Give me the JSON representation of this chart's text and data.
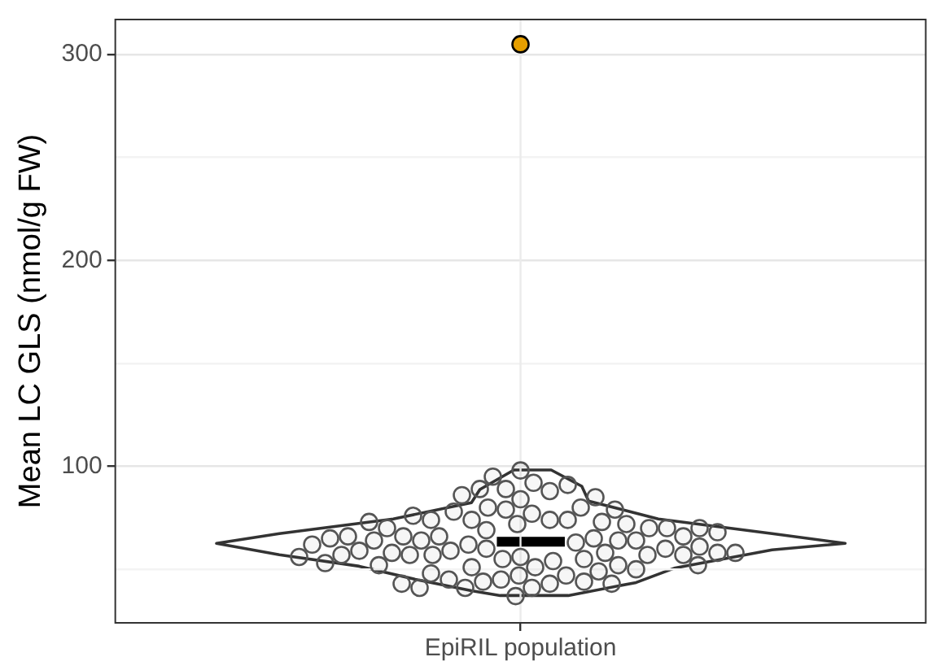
{
  "chart_data": {
    "type": "scatter",
    "categories": [
      "EpiRIL population"
    ],
    "ylabel": "Mean LC GLS (nmol/g FW)",
    "ylim": [
      24,
      317
    ],
    "yticks": [
      {
        "value": 50,
        "label": null
      },
      100,
      {
        "value": 150,
        "label": null
      },
      200,
      {
        "value": 250,
        "label": null
      },
      300
    ],
    "grid": "y",
    "ref_lines": [
      {
        "axis": "x",
        "value": "EpiRIL population",
        "color": "#ebebeb"
      }
    ],
    "legend": false,
    "marker": "circle",
    "series": [
      {
        "color": "#555555",
        "x": [
          "EpiRIL population",
          "EpiRIL population",
          "EpiRIL population",
          "EpiRIL population",
          "EpiRIL population",
          "EpiRIL population",
          "EpiRIL population",
          "EpiRIL population",
          "EpiRIL population",
          "EpiRIL population",
          "EpiRIL population",
          "EpiRIL population",
          "EpiRIL population",
          "EpiRIL population",
          "EpiRIL population",
          "EpiRIL population",
          "EpiRIL population",
          "EpiRIL population",
          "EpiRIL population",
          "EpiRIL population",
          "EpiRIL population",
          "EpiRIL population",
          "EpiRIL population",
          "EpiRIL population",
          "EpiRIL population",
          "EpiRIL population",
          "EpiRIL population",
          "EpiRIL population",
          "EpiRIL population",
          "EpiRIL population",
          "EpiRIL population",
          "EpiRIL population",
          "EpiRIL population",
          "EpiRIL population",
          "EpiRIL population",
          "EpiRIL population",
          "EpiRIL population",
          "EpiRIL population",
          "EpiRIL population",
          "EpiRIL population",
          "EpiRIL population",
          "EpiRIL population",
          "EpiRIL population",
          "EpiRIL population",
          "EpiRIL population",
          "EpiRIL population",
          "EpiRIL population",
          "EpiRIL population",
          "EpiRIL population",
          "EpiRIL population",
          "EpiRIL population",
          "EpiRIL population",
          "EpiRIL population",
          "EpiRIL population",
          "EpiRIL population",
          "EpiRIL population",
          "EpiRIL population",
          "EpiRIL population",
          "EpiRIL population",
          "EpiRIL population",
          "EpiRIL population",
          "EpiRIL population",
          "EpiRIL population",
          "EpiRIL population",
          "EpiRIL population",
          "EpiRIL population",
          "EpiRIL population",
          "EpiRIL population",
          "EpiRIL population",
          "EpiRIL population",
          "EpiRIL population",
          "EpiRIL population",
          "EpiRIL population",
          "EpiRIL population",
          "EpiRIL population",
          "EpiRIL population",
          "EpiRIL population",
          "EpiRIL population",
          "EpiRIL population",
          "EpiRIL population",
          "EpiRIL population",
          "EpiRIL population",
          "EpiRIL population",
          "EpiRIL population",
          "EpiRIL population"
        ],
        "values": [
          98,
          92,
          84,
          89,
          88,
          77,
          79,
          72,
          80,
          74,
          60,
          62,
          63,
          59,
          65,
          66,
          58,
          69,
          64,
          64,
          64,
          66,
          57,
          57,
          57,
          58,
          56,
          51,
          47,
          41,
          45,
          43,
          44,
          47,
          41,
          44,
          55,
          51,
          45,
          49,
          74,
          74,
          95,
          89,
          91,
          86,
          80,
          78,
          73,
          70,
          74,
          70,
          70,
          64,
          60,
          54,
          52,
          48,
          59,
          55,
          66,
          57,
          72,
          66,
          61,
          57,
          58,
          52,
          52,
          50,
          65,
          73,
          85,
          79,
          70,
          62,
          58,
          53,
          56,
          76,
          68,
          43,
          41,
          43,
          37
        ]
      },
      {
        "color": "#e69f00",
        "x": [
          "EpiRIL population"
        ],
        "values": [
          305
        ]
      }
    ]
  }
}
